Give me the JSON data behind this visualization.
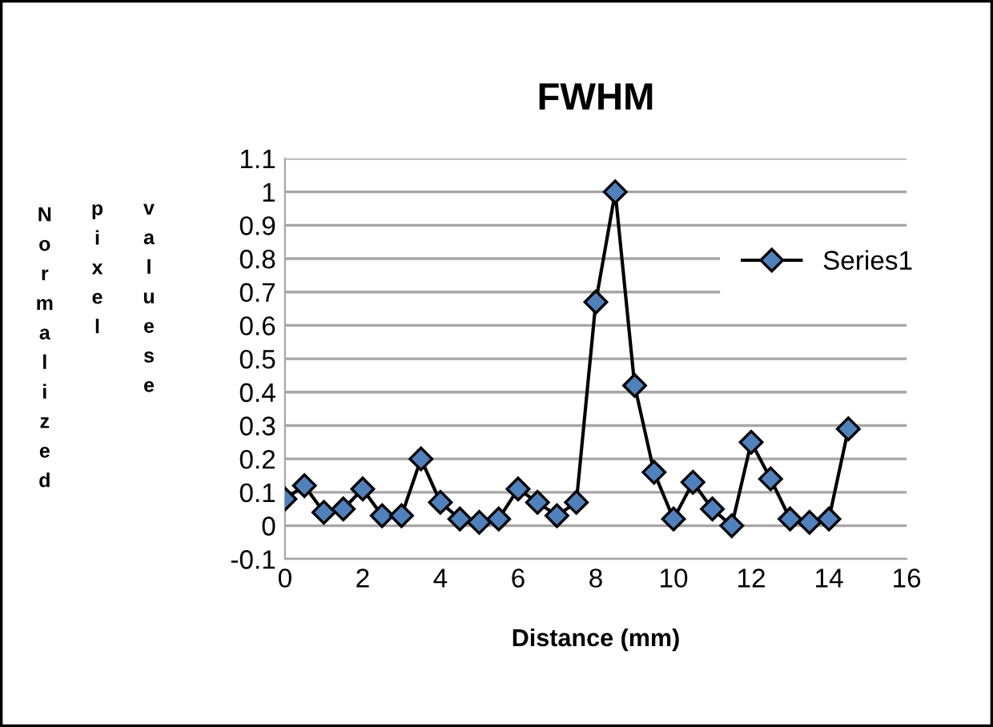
{
  "chart_data": {
    "type": "line",
    "title": "FWHM",
    "xlabel": "Distance (mm)",
    "ylabel": "Normalized pixel valuese",
    "x": [
      0,
      0.5,
      1,
      1.5,
      2,
      2.5,
      3,
      3.5,
      4,
      4.5,
      5,
      5.5,
      6,
      6.5,
      7,
      7.5,
      8,
      8.5,
      9,
      9.5,
      10,
      10.5,
      11,
      11.5,
      12,
      12.5,
      13,
      13.5,
      14,
      14.5
    ],
    "series": [
      {
        "name": "Series1",
        "color": "#4f81bd",
        "values": [
          0.08,
          0.12,
          0.04,
          0.05,
          0.11,
          0.03,
          0.03,
          0.2,
          0.07,
          0.02,
          0.01,
          0.02,
          0.11,
          0.07,
          0.03,
          0.07,
          0.67,
          1.0,
          0.42,
          0.16,
          0.02,
          0.13,
          0.05,
          0.0,
          0.25,
          0.14,
          0.02,
          0.01,
          0.02,
          0.29
        ]
      }
    ],
    "xlim": [
      0,
      16
    ],
    "xticks": [
      0,
      2,
      4,
      6,
      8,
      10,
      12,
      14,
      16
    ],
    "ylim": [
      -0.1,
      1.1
    ],
    "yticks": [
      -0.1,
      0,
      0.1,
      0.2,
      0.3,
      0.4,
      0.5,
      0.6,
      0.7,
      0.8,
      0.9,
      1,
      1.1
    ],
    "grid": "y",
    "legend": "right",
    "marker": "diamond",
    "line_style": "solid"
  }
}
